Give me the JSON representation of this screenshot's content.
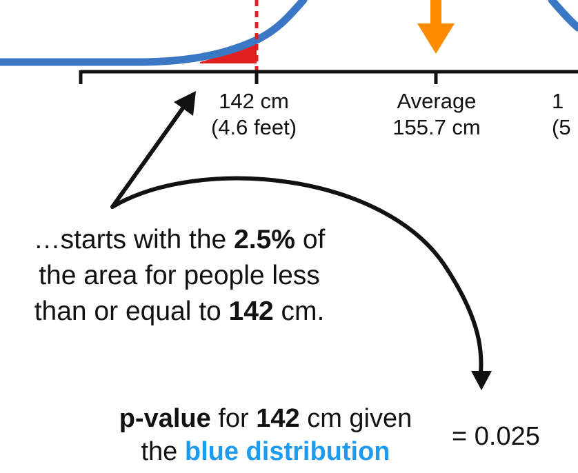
{
  "ticks": {
    "left": {
      "line1": "142 cm",
      "line2": "(4.6 feet)"
    },
    "middle": {
      "line1": "Average",
      "line2": "155.7 cm"
    },
    "right": {
      "line1": "1",
      "line2": "(5"
    }
  },
  "explanation": {
    "line1_pre": "…starts with the ",
    "line1_bold": "2.5%",
    "line1_post": " of",
    "line2": "the area for people less",
    "line3_pre": "than or equal to ",
    "line3_bold": "142",
    "line3_post": " cm."
  },
  "pvalue": {
    "bold_label": "p-value",
    "for_text": " for ",
    "bold_value": "142",
    "given_text": " cm given",
    "line2_pre": "the ",
    "blue_text": "blue distribution",
    "result": "= 0.025"
  },
  "colors": {
    "curve": "#3a77c4",
    "shaded_area": "#e02020",
    "threshold_line": "#e02020",
    "average_arrow": "#ff8c00",
    "axis": "#111111",
    "blue_text": "#1d9bf0"
  }
}
